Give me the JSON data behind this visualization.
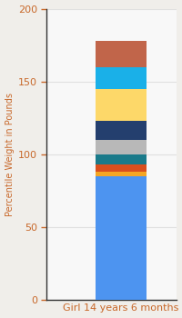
{
  "category": "Girl 14 years 6 months",
  "segments": [
    {
      "value": 85,
      "color": "#4d94f0"
    },
    {
      "value": 3,
      "color": "#f5a623"
    },
    {
      "value": 5,
      "color": "#d94f1e"
    },
    {
      "value": 7,
      "color": "#1a7a8a"
    },
    {
      "value": 10,
      "color": "#b8b8b8"
    },
    {
      "value": 13,
      "color": "#243f6e"
    },
    {
      "value": 22,
      "color": "#fdd869"
    },
    {
      "value": 15,
      "color": "#1ab0e8"
    },
    {
      "value": 18,
      "color": "#c1654a"
    }
  ],
  "ylim": [
    0,
    200
  ],
  "yticks": [
    0,
    50,
    100,
    150,
    200
  ],
  "ylabel": "Percentile Weight in Pounds",
  "xlabel": "Girl 14 years 6 months",
  "bg_color": "#f0eeea",
  "plot_bg_color": "#f8f8f8",
  "grid_color": "#e0e0e0",
  "spine_color": "#333333",
  "bar_width": 0.55,
  "xlabel_color": "#c8682a",
  "ylabel_color": "#c8682a",
  "ytick_color": "#c8682a",
  "xtick_fontsize": 8,
  "ytick_fontsize": 8,
  "ylabel_fontsize": 7
}
